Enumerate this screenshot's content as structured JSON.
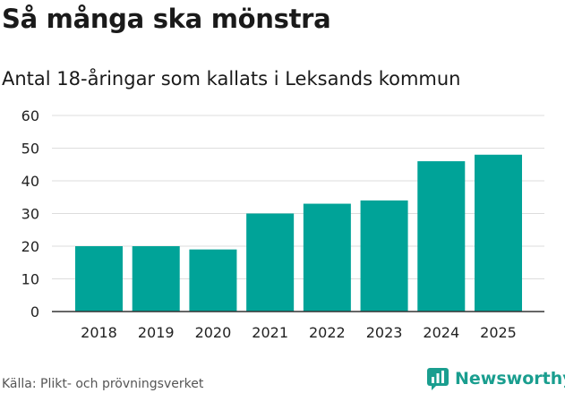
{
  "title": "Så många ska mönstra",
  "subtitle": "Antal 18-åringar som kallats i Leksands kommun",
  "source": "Källa: Plikt- och prövningsverket",
  "brand": {
    "name": "Newsworthy",
    "color": "#1a9e8f",
    "logo_icon": "newsworthy-logo-icon"
  },
  "chart_data": {
    "type": "bar",
    "categories": [
      "2018",
      "2019",
      "2020",
      "2021",
      "2022",
      "2023",
      "2024",
      "2025"
    ],
    "values": [
      20,
      20,
      19,
      30,
      33,
      34,
      46,
      48
    ],
    "yticks": [
      0,
      10,
      20,
      30,
      40,
      50,
      60
    ],
    "ylim": [
      0,
      60
    ],
    "xlabel": "",
    "ylabel": "",
    "bar_color": "#00a398",
    "grid": true
  }
}
